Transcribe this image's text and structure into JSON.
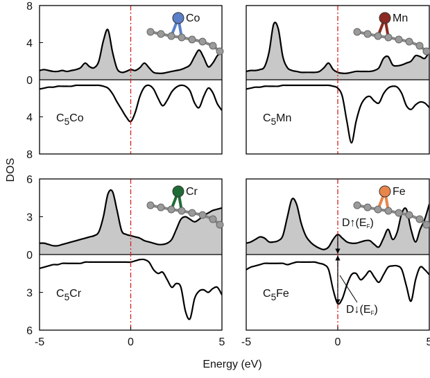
{
  "ylabel": "DOS",
  "xlabel": "Energy (eV)",
  "chart_data": [
    {
      "type": "dos",
      "label": [
        "C",
        "5",
        "Co"
      ],
      "atom": "Co",
      "atom_color": "#5b7fc9",
      "vline": 0,
      "xlim": [
        -5,
        5
      ],
      "ylim": [
        -8,
        8
      ],
      "yticks": [
        8,
        4,
        0,
        {
          "value": -4,
          "label": "4"
        },
        {
          "value": -8,
          "label": "8"
        }
      ],
      "x": [
        -5,
        -4.75,
        -4.5,
        -4.25,
        -4,
        -3.75,
        -3.5,
        -3.25,
        -3,
        -2.75,
        -2.5,
        -2.25,
        -2,
        -1.75,
        -1.5,
        -1.25,
        -1,
        -0.75,
        -0.5,
        -0.25,
        0,
        0.25,
        0.5,
        0.75,
        1,
        1.25,
        1.5,
        1.75,
        2,
        2.25,
        2.5,
        2.75,
        3,
        3.25,
        3.5,
        3.75,
        4,
        4.25,
        4.5,
        4.75,
        5
      ],
      "series": [
        {
          "color": "#000000",
          "fill": "#c8c8c8",
          "values": [
            1.0,
            1.1,
            1.0,
            0.9,
            0.9,
            1.0,
            0.9,
            1.0,
            1.1,
            1.3,
            1.8,
            1.4,
            1.3,
            2.0,
            4.2,
            5.4,
            3.0,
            1.2,
            0.8,
            0.9,
            1.1,
            1.0,
            1.3,
            1.8,
            1.3,
            0.8,
            0.7,
            0.7,
            0.8,
            0.9,
            1.0,
            1.1,
            1.3,
            1.6,
            2.5,
            3.2,
            2.4,
            1.4,
            1.8,
            2.6,
            3.0
          ]
        },
        {
          "color": "#000000",
          "values": [
            -1.0,
            -0.9,
            -0.8,
            -0.8,
            -0.7,
            -0.7,
            -0.7,
            -0.7,
            -0.6,
            -0.6,
            -0.6,
            -0.6,
            -0.6,
            -0.6,
            -0.7,
            -0.9,
            -1.5,
            -2.4,
            -3.2,
            -4.0,
            -4.5,
            -3.5,
            -1.8,
            -0.8,
            -0.6,
            -1.0,
            -2.0,
            -2.8,
            -2.2,
            -1.3,
            -0.8,
            -0.6,
            -0.7,
            -1.2,
            -2.5,
            -3.0,
            -1.8,
            -0.9,
            -1.4,
            -2.6,
            -3.3
          ]
        }
      ]
    },
    {
      "type": "dos",
      "label": [
        "C",
        "5",
        "Mn"
      ],
      "atom": "Mn",
      "atom_color": "#8b2a22",
      "vline": 0,
      "xlim": [
        -5,
        5
      ],
      "ylim": [
        -8,
        8
      ],
      "x": [
        -5,
        -4.75,
        -4.5,
        -4.25,
        -4,
        -3.75,
        -3.5,
        -3.25,
        -3,
        -2.75,
        -2.5,
        -2.25,
        -2,
        -1.75,
        -1.5,
        -1.25,
        -1,
        -0.75,
        -0.5,
        -0.25,
        0,
        0.25,
        0.5,
        0.75,
        1,
        1.25,
        1.5,
        1.75,
        2,
        2.25,
        2.5,
        2.75,
        3,
        3.25,
        3.5,
        3.75,
        4,
        4.25,
        4.5,
        4.75,
        5
      ],
      "series": [
        {
          "color": "#000000",
          "fill": "#c8c8c8",
          "values": [
            0.9,
            1.0,
            1.0,
            1.1,
            1.4,
            3.0,
            6.0,
            5.5,
            2.5,
            1.3,
            1.0,
            0.9,
            0.8,
            0.8,
            0.8,
            0.8,
            0.9,
            1.3,
            1.8,
            1.1,
            0.8,
            0.7,
            0.7,
            0.8,
            0.9,
            0.9,
            0.9,
            0.9,
            1.0,
            1.3,
            2.3,
            2.5,
            1.6,
            1.5,
            1.6,
            1.8,
            2.0,
            2.6,
            2.5,
            2.3,
            3.0
          ]
        },
        {
          "color": "#000000",
          "values": [
            -1.0,
            -0.9,
            -0.8,
            -0.8,
            -0.7,
            -0.7,
            -0.7,
            -0.7,
            -0.6,
            -0.6,
            -0.6,
            -0.6,
            -0.6,
            -0.6,
            -0.6,
            -0.6,
            -0.6,
            -0.6,
            -0.6,
            -0.7,
            -0.9,
            -1.8,
            -4.5,
            -6.8,
            -4.5,
            -2.8,
            -2.0,
            -1.8,
            -2.3,
            -2.5,
            -1.5,
            -0.9,
            -0.7,
            -0.8,
            -1.5,
            -2.8,
            -3.2,
            -2.7,
            -2.4,
            -2.5,
            -3.0
          ]
        }
      ]
    },
    {
      "type": "dos",
      "label": [
        "C",
        "5",
        "Cr"
      ],
      "atom": "Cr",
      "atom_color": "#1f6b35",
      "vline": 0,
      "xlim": [
        -5,
        5
      ],
      "ylim": [
        -6,
        6
      ],
      "xticks": [
        -5,
        0,
        5
      ],
      "yticks": [
        6,
        3,
        0,
        {
          "value": -3,
          "label": "3"
        },
        {
          "value": -6,
          "label": "6"
        }
      ],
      "x": [
        -5,
        -4.75,
        -4.5,
        -4.25,
        -4,
        -3.75,
        -3.5,
        -3.25,
        -3,
        -2.75,
        -2.5,
        -2.25,
        -2,
        -1.75,
        -1.5,
        -1.25,
        -1,
        -0.75,
        -0.5,
        -0.25,
        0,
        0.25,
        0.5,
        0.75,
        1,
        1.25,
        1.5,
        1.75,
        2,
        2.25,
        2.5,
        2.75,
        3,
        3.25,
        3.5,
        3.75,
        4,
        4.25,
        4.5,
        4.75,
        5
      ],
      "series": [
        {
          "color": "#000000",
          "fill": "#c8c8c8",
          "values": [
            0.9,
            0.9,
            0.8,
            0.7,
            0.7,
            0.8,
            0.9,
            1.0,
            1.1,
            1.2,
            1.3,
            1.4,
            1.5,
            1.8,
            3.0,
            4.8,
            5.0,
            3.5,
            1.9,
            1.6,
            1.5,
            1.4,
            1.3,
            1.1,
            1.0,
            0.9,
            0.8,
            0.8,
            0.9,
            1.2,
            2.0,
            2.8,
            3.0,
            2.8,
            2.6,
            2.8,
            3.1,
            3.3,
            3.5,
            3.6,
            3.7
          ]
        },
        {
          "color": "#000000",
          "values": [
            -1.1,
            -1.0,
            -0.9,
            -0.8,
            -0.8,
            -0.7,
            -0.7,
            -0.7,
            -0.7,
            -0.7,
            -0.6,
            -0.6,
            -0.6,
            -0.6,
            -0.6,
            -0.6,
            -0.6,
            -0.6,
            -0.6,
            -0.6,
            -0.6,
            -0.5,
            -0.4,
            -0.4,
            -0.6,
            -1.2,
            -1.5,
            -1.4,
            -2.0,
            -2.6,
            -2.3,
            -2.6,
            -4.5,
            -5.1,
            -3.5,
            -2.9,
            -2.8,
            -3.0,
            -2.7,
            -2.6,
            -3.2
          ]
        }
      ]
    },
    {
      "type": "dos",
      "label": [
        "C",
        "5",
        "Fe"
      ],
      "atom": "Fe",
      "atom_color": "#e8854a",
      "vline": 0,
      "xlim": [
        -5,
        5
      ],
      "ylim": [
        -6,
        6
      ],
      "xticks": [
        -5,
        0,
        5
      ],
      "annotations": [
        [
          "D↑(E",
          "F",
          ")"
        ],
        [
          "D↓(E",
          "F",
          ")"
        ]
      ],
      "x": [
        -5,
        -4.75,
        -4.5,
        -4.25,
        -4,
        -3.75,
        -3.5,
        -3.25,
        -3,
        -2.75,
        -2.5,
        -2.25,
        -2,
        -1.75,
        -1.5,
        -1.25,
        -1,
        -0.75,
        -0.5,
        -0.25,
        0,
        0.25,
        0.5,
        0.75,
        1,
        1.25,
        1.5,
        1.75,
        2,
        2.25,
        2.5,
        2.75,
        3,
        3.25,
        3.5,
        3.75,
        4,
        4.25,
        4.5,
        4.75,
        5
      ],
      "series": [
        {
          "color": "#000000",
          "fill": "#c8c8c8",
          "values": [
            0.9,
            1.0,
            1.2,
            1.4,
            1.3,
            1.0,
            1.0,
            1.1,
            1.5,
            3.0,
            4.4,
            4.0,
            2.5,
            1.5,
            1.0,
            0.7,
            0.5,
            0.4,
            0.6,
            1.2,
            1.6,
            1.3,
            1.0,
            0.9,
            0.9,
            1.0,
            1.1,
            1.1,
            0.8,
            0.6,
            1.3,
            2.0,
            1.2,
            1.8,
            3.3,
            3.6,
            2.0,
            1.0,
            2.0,
            2.8,
            4.0
          ]
        },
        {
          "color": "#000000",
          "values": [
            -1.2,
            -1.0,
            -0.9,
            -0.8,
            -0.7,
            -0.7,
            -0.7,
            -0.7,
            -0.7,
            -0.8,
            -0.7,
            -0.6,
            -0.6,
            -0.6,
            -0.6,
            -0.6,
            -0.7,
            -0.8,
            -1.2,
            -2.8,
            -3.9,
            -3.5,
            -2.4,
            -1.6,
            -1.5,
            -2.0,
            -1.7,
            -1.3,
            -1.8,
            -2.2,
            -1.6,
            -1.0,
            -0.9,
            -0.9,
            -1.2,
            -2.5,
            -3.7,
            -2.0,
            -1.0,
            -1.2,
            -1.6
          ]
        }
      ]
    }
  ]
}
